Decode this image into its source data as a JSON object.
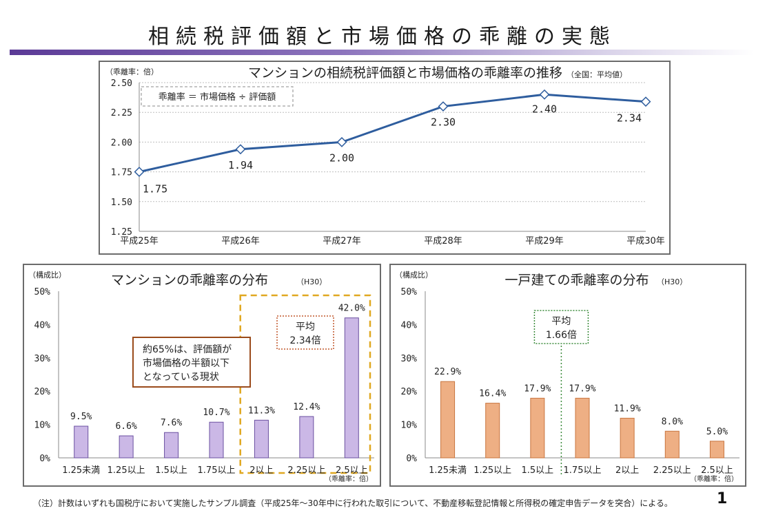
{
  "page": {
    "title": "相続税評価額と市場価格の乖離の実態",
    "footer": "（注）計数はいずれも国税庁において実施したサンプル調査（平成25年～30年中に行われた取引について、不動産移転登記情報と所得税の確定申告データを突合）による。",
    "page_number": "1"
  },
  "colors": {
    "line": "#2e5d9e",
    "mansion_bar": "#cbb8e6",
    "mansion_bar_border": "#6a4fa0",
    "house_bar": "#eeaf84",
    "house_bar_border": "#c8743e",
    "highlight_box": "#e0a820",
    "avg_box_mansion": "#c0572a",
    "avg_box_house": "#3a8a3a",
    "callout_border": "#9a4a1a"
  },
  "chart_data": [
    {
      "type": "line",
      "title": "マンションの相続税評価額と市場価格の乖離率の推移",
      "subtitle": "（全国：平均値）",
      "unit_label": "（乖離率：倍）",
      "formula": "乖離率 ＝ 市場価格 ÷ 評価額",
      "categories": [
        "平成25年",
        "平成26年",
        "平成27年",
        "平成28年",
        "平成29年",
        "平成30年"
      ],
      "values": [
        1.75,
        1.94,
        2.0,
        2.3,
        2.4,
        2.34
      ],
      "value_labels": [
        "1.75",
        "1.94",
        "2.00",
        "2.30",
        "2.40",
        "2.34"
      ],
      "ylim": [
        1.25,
        2.5
      ],
      "yticks": [
        "1.25",
        "1.50",
        "1.75",
        "2.00",
        "2.25",
        "2.50"
      ],
      "grid": true
    },
    {
      "type": "bar",
      "title": "マンションの乖離率の分布",
      "title_suffix": "（H30）",
      "unit_label": "（構成比）",
      "xunit_label": "（乖離率：倍）",
      "categories": [
        "1.25未満",
        "1.25以上",
        "1.5以上",
        "1.75以上",
        "2以上",
        "2.25以上",
        "2.5以上"
      ],
      "values": [
        9.5,
        6.6,
        7.6,
        10.7,
        11.3,
        12.4,
        42.0
      ],
      "value_labels": [
        "9.5%",
        "6.6%",
        "7.6%",
        "10.7%",
        "11.3%",
        "12.4%",
        "42.0%"
      ],
      "ylim": [
        0,
        50
      ],
      "yticks": [
        "0%",
        "10%",
        "20%",
        "30%",
        "40%",
        "50%"
      ],
      "average_label": [
        "平均",
        "2.34倍"
      ],
      "callout": [
        "約65%は、評価額が",
        "市場価格の半額以下",
        "となっている現状"
      ]
    },
    {
      "type": "bar",
      "title": "一戸建ての乖離率の分布",
      "title_suffix": "（H30）",
      "unit_label": "（構成比）",
      "xunit_label": "（乖離率：倍）",
      "categories": [
        "1.25未満",
        "1.25以上",
        "1.5以上",
        "1.75以上",
        "2以上",
        "2.25以上",
        "2.5以上"
      ],
      "values": [
        22.9,
        16.4,
        17.9,
        17.9,
        11.9,
        8.0,
        5.0
      ],
      "value_labels": [
        "22.9%",
        "16.4%",
        "17.9%",
        "17.9%",
        "11.9%",
        "8.0%",
        "5.0%"
      ],
      "ylim": [
        0,
        50
      ],
      "yticks": [
        "0%",
        "10%",
        "20%",
        "30%",
        "40%",
        "50%"
      ],
      "average_label": [
        "平均",
        "1.66倍"
      ]
    }
  ]
}
